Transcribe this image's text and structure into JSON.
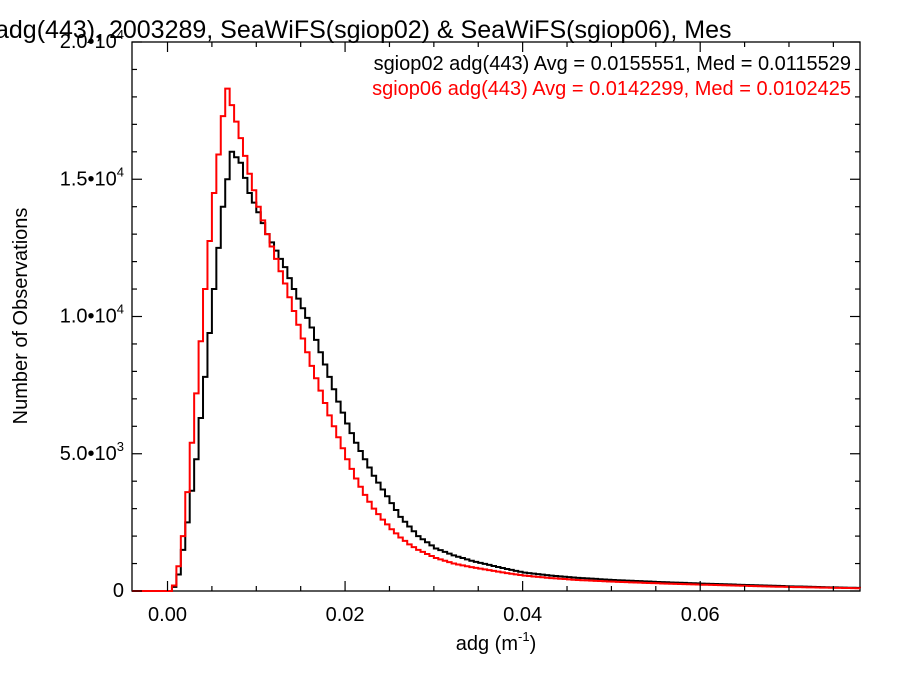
{
  "chart_data": {
    "type": "line",
    "title": "adg(443), 2003289, SeaWiFS(sgiop02) & SeaWiFS(sgiop06), Mes",
    "xlabel": "adg (m",
    "xlabel_sup": "-1",
    "xlabel_tail": ")",
    "ylabel": "Number of Observations",
    "xlim": [
      -0.004,
      0.078
    ],
    "ylim": [
      0,
      20000
    ],
    "x_ticks": [
      {
        "value": 0.0,
        "label": "0.00"
      },
      {
        "value": 0.02,
        "label": "0.02"
      },
      {
        "value": 0.04,
        "label": "0.04"
      },
      {
        "value": 0.06,
        "label": "0.06"
      }
    ],
    "y_ticks": [
      {
        "value": 0,
        "base": "0",
        "exp": ""
      },
      {
        "value": 5000,
        "base": "5.0•10",
        "exp": "3"
      },
      {
        "value": 10000,
        "base": "1.0•10",
        "exp": "4"
      },
      {
        "value": 15000,
        "base": "1.5•10",
        "exp": "4"
      },
      {
        "value": 20000,
        "base": "2.0•10",
        "exp": "4"
      }
    ],
    "legend_position": "top-right",
    "series": [
      {
        "name": "sgiop02 adg(443) Avg = 0.0155551, Med = 0.0115529",
        "color": "#000000",
        "points": [
          [
            -0.004,
            0
          ],
          [
            0.0,
            0
          ],
          [
            0.0005,
            150
          ],
          [
            0.001,
            600
          ],
          [
            0.0015,
            1500
          ],
          [
            0.002,
            2500
          ],
          [
            0.003,
            4800
          ],
          [
            0.004,
            7800
          ],
          [
            0.005,
            11000
          ],
          [
            0.006,
            14000
          ],
          [
            0.007,
            16000
          ],
          [
            0.008,
            15600
          ],
          [
            0.009,
            14500
          ],
          [
            0.01,
            13800
          ],
          [
            0.011,
            13000
          ],
          [
            0.012,
            12400
          ],
          [
            0.013,
            11800
          ],
          [
            0.014,
            11000
          ],
          [
            0.015,
            10300
          ],
          [
            0.016,
            9600
          ],
          [
            0.017,
            8700
          ],
          [
            0.018,
            7800
          ],
          [
            0.019,
            6900
          ],
          [
            0.02,
            6100
          ],
          [
            0.021,
            5400
          ],
          [
            0.022,
            4800
          ],
          [
            0.023,
            4200
          ],
          [
            0.024,
            3700
          ],
          [
            0.025,
            3200
          ],
          [
            0.026,
            2700
          ],
          [
            0.027,
            2350
          ],
          [
            0.028,
            2000
          ],
          [
            0.03,
            1550
          ],
          [
            0.032,
            1300
          ],
          [
            0.034,
            1100
          ],
          [
            0.036,
            950
          ],
          [
            0.038,
            800
          ],
          [
            0.04,
            670
          ],
          [
            0.043,
            560
          ],
          [
            0.046,
            480
          ],
          [
            0.05,
            400
          ],
          [
            0.055,
            330
          ],
          [
            0.06,
            270
          ],
          [
            0.065,
            220
          ],
          [
            0.07,
            170
          ],
          [
            0.075,
            130
          ],
          [
            0.078,
            110
          ]
        ]
      },
      {
        "name": "sgiop06 adg(443) Avg = 0.0142299, Med = 0.0102425",
        "color": "#ff0000",
        "points": [
          [
            -0.004,
            0
          ],
          [
            0.0,
            0
          ],
          [
            0.0005,
            200
          ],
          [
            0.001,
            900
          ],
          [
            0.0015,
            2000
          ],
          [
            0.002,
            3600
          ],
          [
            0.003,
            7200
          ],
          [
            0.004,
            11000
          ],
          [
            0.005,
            14500
          ],
          [
            0.006,
            17300
          ],
          [
            0.0065,
            18300
          ],
          [
            0.007,
            17700
          ],
          [
            0.008,
            16500
          ],
          [
            0.009,
            15200
          ],
          [
            0.01,
            14000
          ],
          [
            0.011,
            13000
          ],
          [
            0.012,
            12100
          ],
          [
            0.013,
            11200
          ],
          [
            0.014,
            10200
          ],
          [
            0.015,
            9200
          ],
          [
            0.016,
            8200
          ],
          [
            0.017,
            7300
          ],
          [
            0.018,
            6400
          ],
          [
            0.019,
            5600
          ],
          [
            0.02,
            4800
          ],
          [
            0.021,
            4100
          ],
          [
            0.022,
            3500
          ],
          [
            0.023,
            3000
          ],
          [
            0.024,
            2600
          ],
          [
            0.025,
            2250
          ],
          [
            0.026,
            1950
          ],
          [
            0.027,
            1700
          ],
          [
            0.028,
            1500
          ],
          [
            0.03,
            1200
          ],
          [
            0.032,
            1000
          ],
          [
            0.034,
            870
          ],
          [
            0.036,
            760
          ],
          [
            0.038,
            650
          ],
          [
            0.04,
            560
          ],
          [
            0.043,
            470
          ],
          [
            0.046,
            400
          ],
          [
            0.05,
            340
          ],
          [
            0.055,
            280
          ],
          [
            0.06,
            230
          ],
          [
            0.065,
            185
          ],
          [
            0.07,
            145
          ],
          [
            0.075,
            115
          ],
          [
            0.078,
            100
          ]
        ]
      }
    ]
  }
}
